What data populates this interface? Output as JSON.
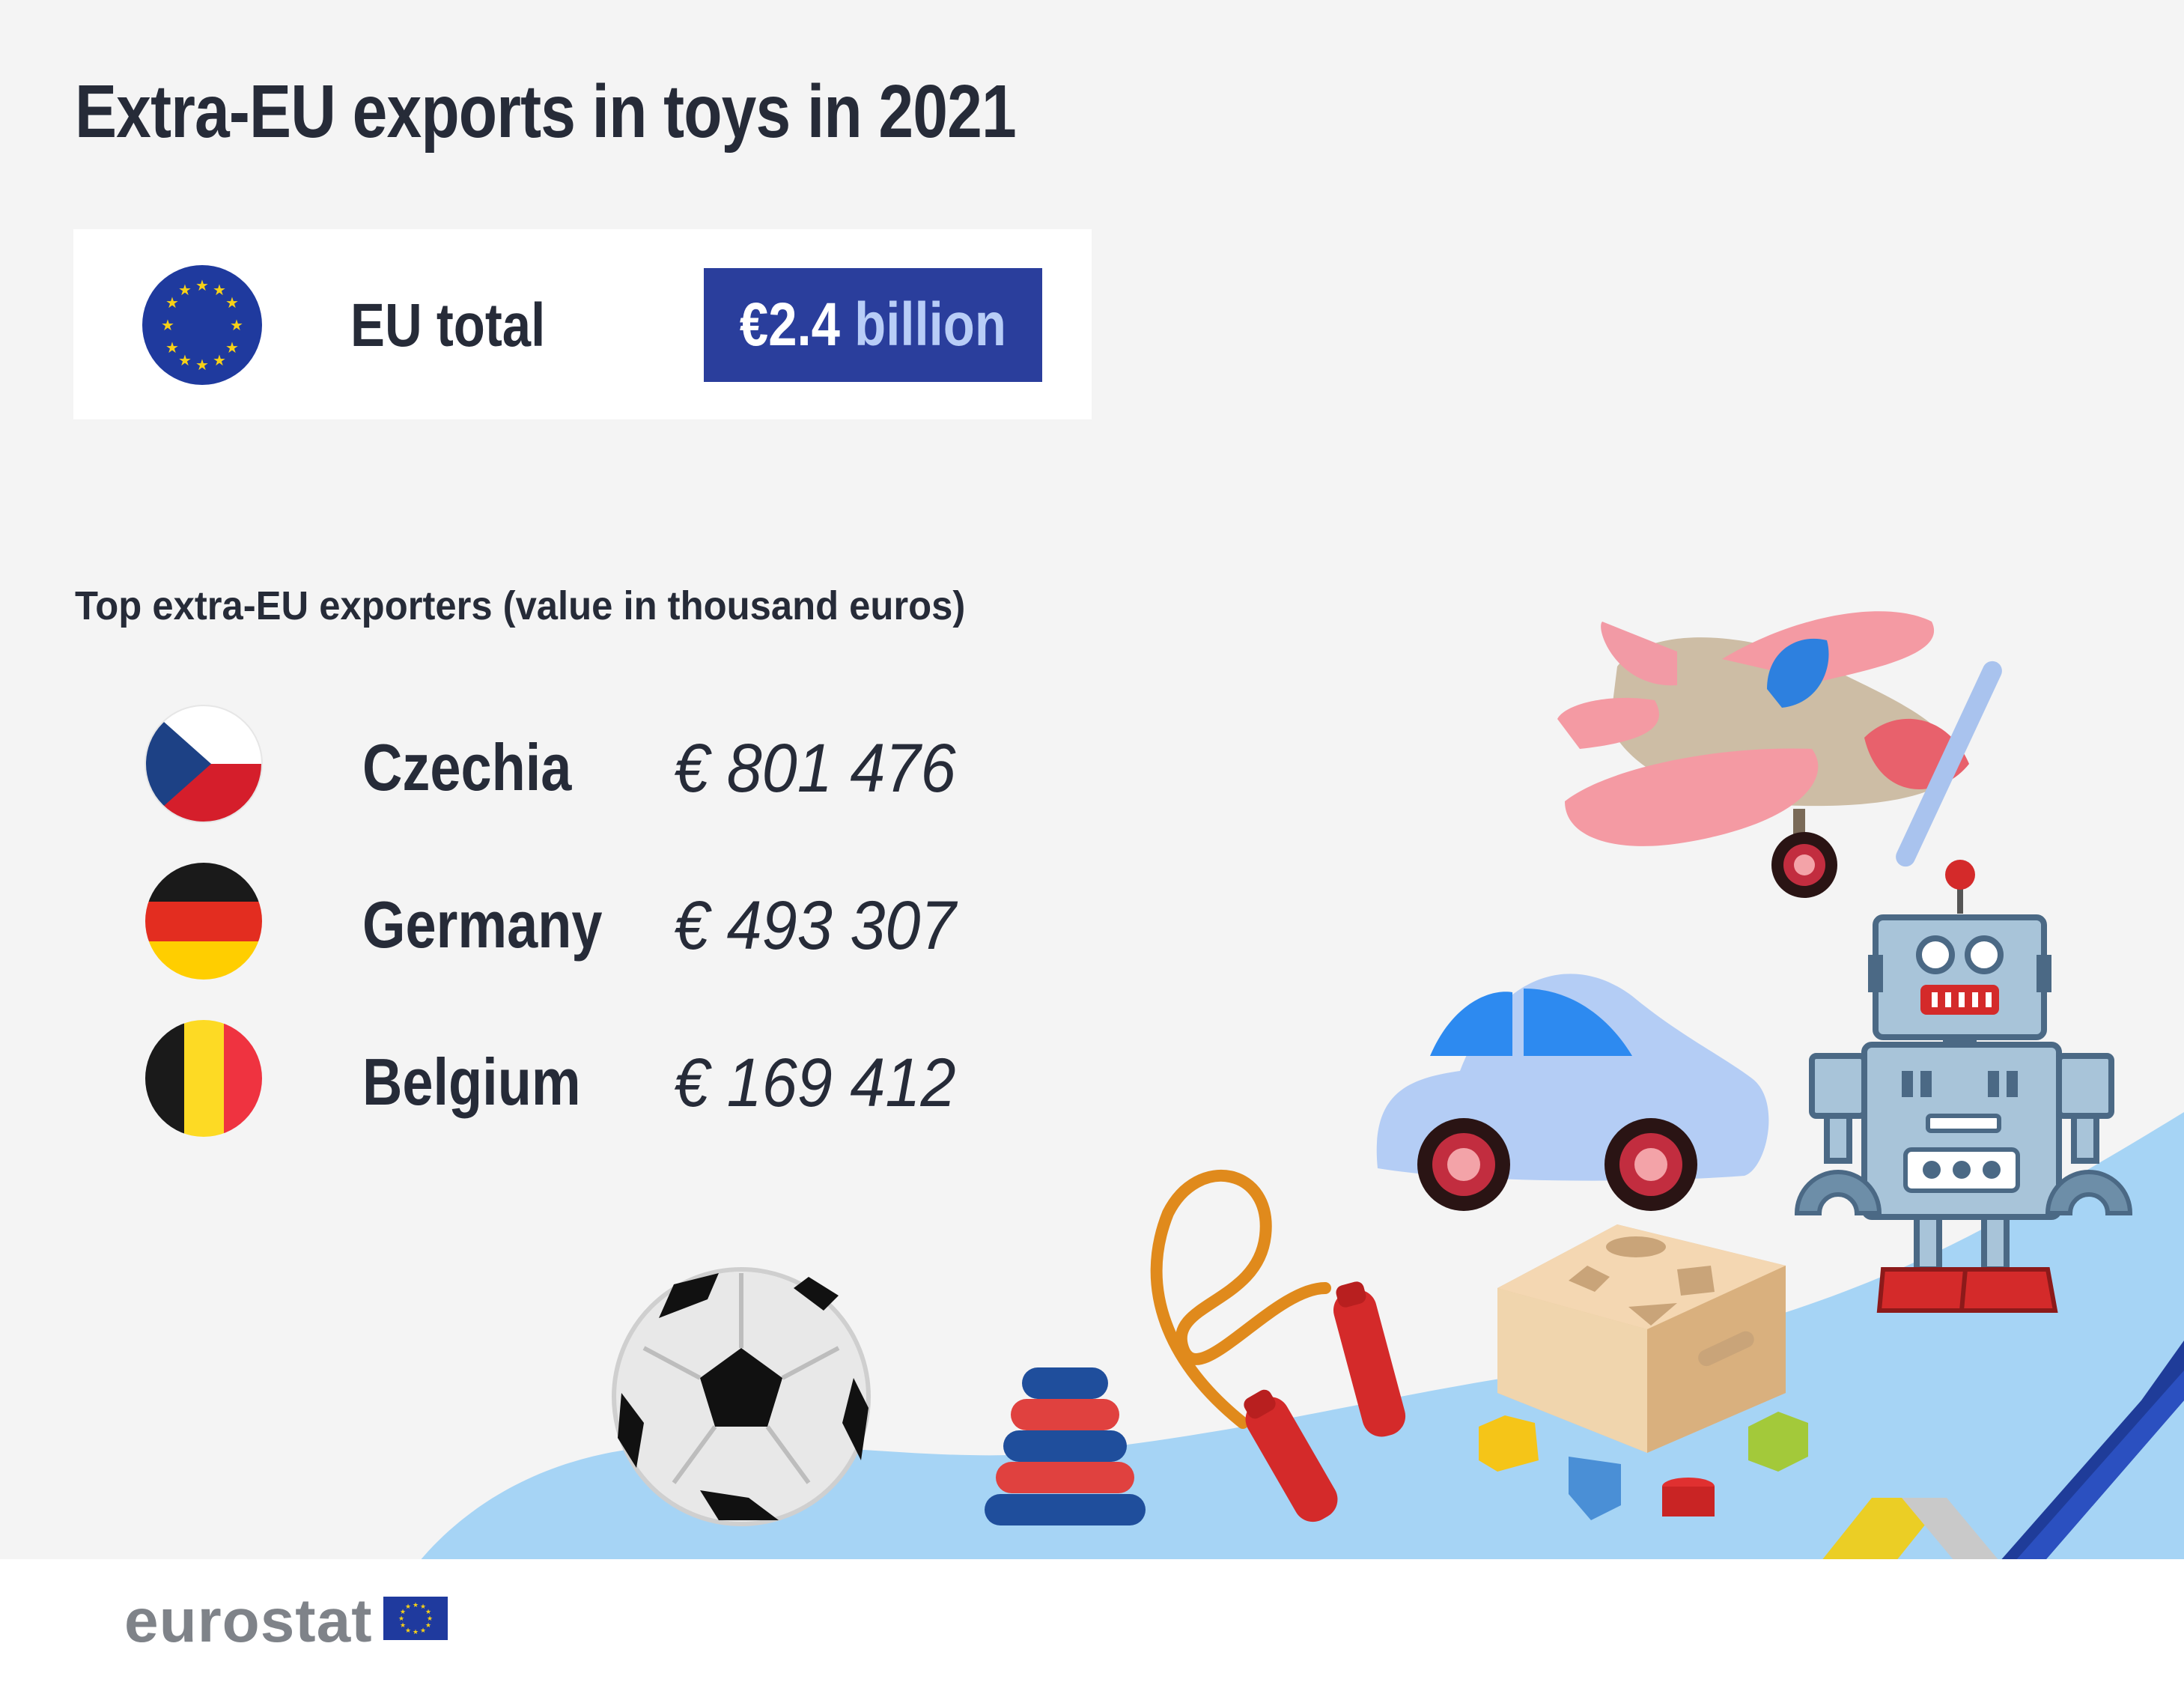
{
  "title": "Extra-EU exports in toys in 2021",
  "eu_total": {
    "label": "EU total",
    "amount": "€2.4",
    "unit": "billion"
  },
  "subtitle": "Top extra-EU exporters (value in thousand euros)",
  "exporters": [
    {
      "country": "Czechia",
      "value": "€ 801 476",
      "flag": "czech-flag"
    },
    {
      "country": "Germany",
      "value": "€ 493 307",
      "flag": "german-flag"
    },
    {
      "country": "Belgium",
      "value": "€ 169 412",
      "flag": "belgian-flag"
    }
  ],
  "footer": {
    "logo_text": "eurostat"
  },
  "colors": {
    "title": "#262b38",
    "eu_blue": "#2a3e9c",
    "accent_light": "#b8cdf7",
    "ground": "#a6d4f5",
    "ribbon_blue": "#1f3c99",
    "ribbon_yellow": "#f7cc00",
    "ribbon_grey": "#c9c9c9"
  }
}
